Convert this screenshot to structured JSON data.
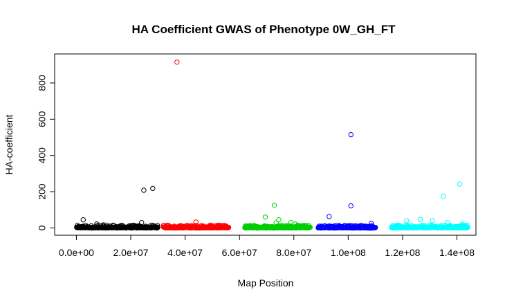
{
  "chart_data": {
    "type": "scatter",
    "title": "HA Coefficient GWAS of Phenotype 0W_GH_FT",
    "xlabel": "Map Position",
    "ylabel": "HA-coefficient",
    "xlim": [
      -8000000,
      147000000
    ],
    "ylim": [
      -40,
      960
    ],
    "xticks": [
      0,
      20000000,
      40000000,
      60000000,
      80000000,
      100000000,
      120000000,
      140000000
    ],
    "xtick_labels": [
      "0.0e+00",
      "2.0e+07",
      "4.0e+07",
      "6.0e+07",
      "8.0e+07",
      "1.0e+08",
      "1.2e+08",
      "1.4e+08"
    ],
    "yticks": [
      0,
      200,
      400,
      600,
      800
    ],
    "ytick_labels": [
      "0",
      "200",
      "400",
      "600",
      "800"
    ],
    "grid": false,
    "marker": "open-circle",
    "series": [
      {
        "color": "#000000",
        "x_range": [
          100000,
          30000000
        ],
        "outliers": [
          {
            "x": 2500000,
            "y": 45
          },
          {
            "x": 7500000,
            "y": 22
          },
          {
            "x": 10000000,
            "y": 17
          },
          {
            "x": 13500000,
            "y": 15
          },
          {
            "x": 24000000,
            "y": 30
          },
          {
            "x": 24800000,
            "y": 208
          },
          {
            "x": 28100000,
            "y": 218
          }
        ]
      },
      {
        "color": "#ff0000",
        "x_range": [
          32000000,
          56000000
        ],
        "outliers": [
          {
            "x": 37000000,
            "y": 915
          },
          {
            "x": 44000000,
            "y": 33
          },
          {
            "x": 49000000,
            "y": 14
          }
        ]
      },
      {
        "color": "#00cd00",
        "x_range": [
          62000000,
          86000000
        ],
        "outliers": [
          {
            "x": 69500000,
            "y": 60
          },
          {
            "x": 72800000,
            "y": 125
          },
          {
            "x": 74500000,
            "y": 45
          },
          {
            "x": 73500000,
            "y": 28
          },
          {
            "x": 78900000,
            "y": 30
          },
          {
            "x": 80500000,
            "y": 22
          }
        ]
      },
      {
        "color": "#0000ff",
        "x_range": [
          89000000,
          110000000
        ],
        "outliers": [
          {
            "x": 93000000,
            "y": 63
          },
          {
            "x": 101000000,
            "y": 515
          },
          {
            "x": 101000000,
            "y": 122
          },
          {
            "x": 108500000,
            "y": 25
          }
        ]
      },
      {
        "color": "#00ffff",
        "x_range": [
          116000000,
          144000000
        ],
        "outliers": [
          {
            "x": 121500000,
            "y": 40
          },
          {
            "x": 126500000,
            "y": 47
          },
          {
            "x": 131000000,
            "y": 40
          },
          {
            "x": 135000000,
            "y": 175
          },
          {
            "x": 136500000,
            "y": 30
          },
          {
            "x": 141000000,
            "y": 242
          },
          {
            "x": 142000000,
            "y": 20
          }
        ]
      }
    ]
  }
}
